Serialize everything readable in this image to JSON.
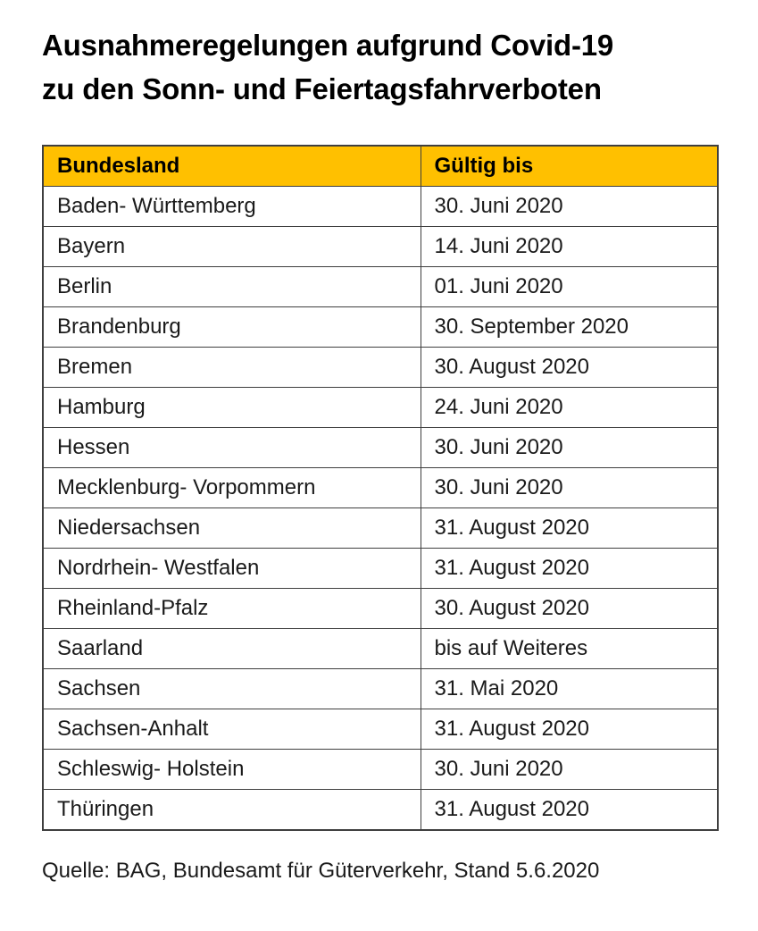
{
  "page": {
    "title_line1": "Ausnahmeregelungen aufgrund Covid-19",
    "title_line2": "zu den Sonn- und Feiertagsfahrverboten",
    "source_note": "Quelle: BAG, Bundesamt für Güterverkehr, Stand 5.6.2020"
  },
  "colors": {
    "header_bg": "#FFC000",
    "table_border": "#3F3F3F",
    "text": "#1A1A1A"
  },
  "table": {
    "columns": [
      "Bundesland",
      "Gültig bis"
    ],
    "rows": [
      [
        "Baden- Württemberg",
        "30. Juni 2020"
      ],
      [
        "Bayern",
        "14. Juni 2020"
      ],
      [
        "Berlin",
        "01. Juni 2020"
      ],
      [
        "Brandenburg",
        "30. September 2020"
      ],
      [
        "Bremen",
        "30. August 2020"
      ],
      [
        "Hamburg",
        "24. Juni 2020"
      ],
      [
        "Hessen",
        "30. Juni 2020"
      ],
      [
        "Mecklenburg- Vorpommern",
        "30. Juni 2020"
      ],
      [
        "Niedersachsen",
        "31. August 2020"
      ],
      [
        "Nordrhein- Westfalen",
        "31. August 2020"
      ],
      [
        "Rheinland-Pfalz",
        "30. August 2020"
      ],
      [
        "Saarland",
        "bis auf Weiteres"
      ],
      [
        "Sachsen",
        "31. Mai 2020"
      ],
      [
        "Sachsen-Anhalt",
        "31. August 2020"
      ],
      [
        "Schleswig- Holstein",
        "30. Juni 2020"
      ],
      [
        "Thüringen",
        "31. August 2020"
      ]
    ]
  },
  "chart_data": {
    "type": "table",
    "title": "Ausnahmeregelungen aufgrund Covid-19 zu den Sonn- und Feiertagsfahrverboten",
    "columns": [
      "Bundesland",
      "Gültig bis"
    ],
    "rows": [
      {
        "bundesland": "Baden- Württemberg",
        "gueltig_bis": "30. Juni 2020"
      },
      {
        "bundesland": "Bayern",
        "gueltig_bis": "14. Juni 2020"
      },
      {
        "bundesland": "Berlin",
        "gueltig_bis": "01. Juni 2020"
      },
      {
        "bundesland": "Brandenburg",
        "gueltig_bis": "30. September 2020"
      },
      {
        "bundesland": "Bremen",
        "gueltig_bis": "30. August 2020"
      },
      {
        "bundesland": "Hamburg",
        "gueltig_bis": "24. Juni 2020"
      },
      {
        "bundesland": "Hessen",
        "gueltig_bis": "30. Juni 2020"
      },
      {
        "bundesland": "Mecklenburg- Vorpommern",
        "gueltig_bis": "30. Juni 2020"
      },
      {
        "bundesland": "Niedersachsen",
        "gueltig_bis": "31. August 2020"
      },
      {
        "bundesland": "Nordrhein- Westfalen",
        "gueltig_bis": "31. August 2020"
      },
      {
        "bundesland": "Rheinland-Pfalz",
        "gueltig_bis": "30. August 2020"
      },
      {
        "bundesland": "Saarland",
        "gueltig_bis": "bis auf Weiteres"
      },
      {
        "bundesland": "Sachsen",
        "gueltig_bis": "31. Mai 2020"
      },
      {
        "bundesland": "Sachsen-Anhalt",
        "gueltig_bis": "31. August 2020"
      },
      {
        "bundesland": "Schleswig- Holstein",
        "gueltig_bis": "30. Juni 2020"
      },
      {
        "bundesland": "Thüringen",
        "gueltig_bis": "31. August 2020"
      }
    ],
    "annotations": [
      "Quelle: BAG, Bundesamt für Güterverkehr, Stand 5.6.2020"
    ],
    "header_fill": "#FFC000",
    "legend_position": "none",
    "grid": true
  }
}
